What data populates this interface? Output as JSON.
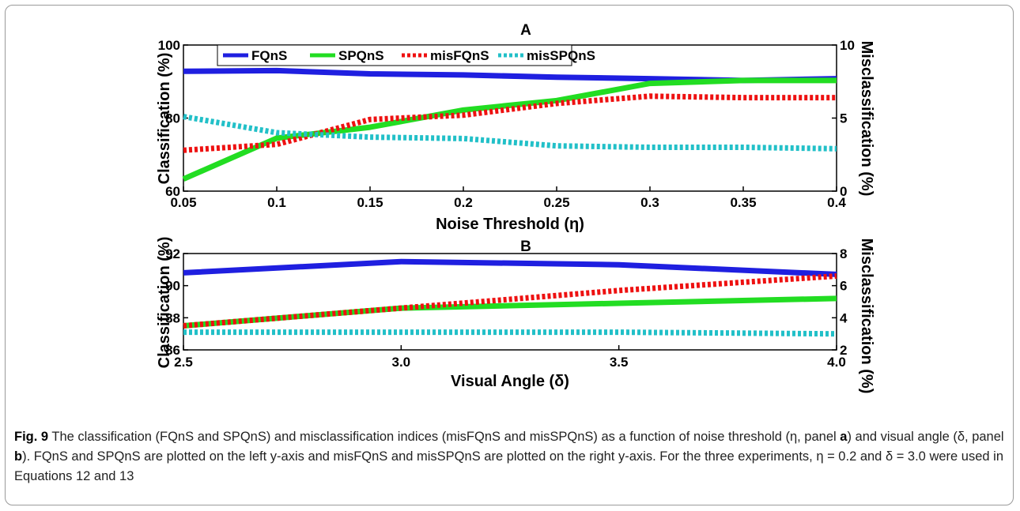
{
  "chart_data": [
    {
      "type": "line",
      "title": "A",
      "xlabel": "Noise Threshold (η)",
      "ylabel": "Classification (%)",
      "y2label": "Misclassification (%)",
      "x": [
        0.05,
        0.1,
        0.15,
        0.2,
        0.25,
        0.3,
        0.35,
        0.4
      ],
      "xticks": [
        "0.05",
        "0.1",
        "0.15",
        "0.2",
        "0.25",
        "0.3",
        "0.35",
        "0.4"
      ],
      "xlim": [
        0.05,
        0.4
      ],
      "ylim": [
        60,
        100
      ],
      "yticks": [
        "60",
        "80",
        "100"
      ],
      "y2lim": [
        0,
        10
      ],
      "y2ticks": [
        "0",
        "5",
        "10"
      ],
      "legend_position": "top",
      "series": [
        {
          "name": "FQnS",
          "axis": "left",
          "color": "#1f1fe0",
          "style": "solid",
          "values": [
            92.8,
            93.0,
            92.1,
            91.8,
            91.2,
            90.8,
            90.3,
            90.8
          ]
        },
        {
          "name": "SPQnS",
          "axis": "left",
          "color": "#22dd22",
          "style": "solid",
          "values": [
            63.3,
            74.5,
            77.5,
            82.2,
            84.8,
            89.5,
            90.3,
            90.3
          ]
        },
        {
          "name": "misFQnS",
          "axis": "right",
          "color": "#ee1111",
          "style": "dotted",
          "values": [
            2.8,
            3.2,
            4.9,
            5.2,
            6.0,
            6.5,
            6.4,
            6.4
          ]
        },
        {
          "name": "misSPQnS",
          "axis": "right",
          "color": "#22c0c8",
          "style": "dotted",
          "values": [
            5.1,
            4.0,
            3.7,
            3.6,
            3.1,
            3.0,
            3.0,
            2.9
          ]
        }
      ]
    },
    {
      "type": "line",
      "title": "B",
      "xlabel": "Visual Angle (δ)",
      "ylabel": "Classification (%)",
      "y2label": "Misclassification (%)",
      "x": [
        2.5,
        3.0,
        3.5,
        4.0
      ],
      "xticks": [
        "2.5",
        "3.0",
        "3.5",
        "4.0"
      ],
      "xlim": [
        2.5,
        4.0
      ],
      "ylim": [
        86,
        92
      ],
      "yticks": [
        "86",
        "88",
        "90",
        "92"
      ],
      "y2lim": [
        2,
        8
      ],
      "y2ticks": [
        "2",
        "4",
        "6",
        "8"
      ],
      "series": [
        {
          "name": "FQnS",
          "axis": "left",
          "color": "#1f1fe0",
          "style": "solid",
          "values": [
            90.8,
            91.5,
            91.3,
            90.7
          ]
        },
        {
          "name": "SPQnS",
          "axis": "left",
          "color": "#22dd22",
          "style": "solid",
          "values": [
            87.5,
            88.6,
            88.9,
            89.2
          ]
        },
        {
          "name": "misFQnS",
          "axis": "right",
          "color": "#ee1111",
          "style": "dotted",
          "values": [
            3.5,
            4.6,
            5.7,
            6.6
          ]
        },
        {
          "name": "misSPQnS",
          "axis": "right",
          "color": "#22c0c8",
          "style": "dotted",
          "values": [
            3.1,
            3.1,
            3.1,
            3.0
          ]
        }
      ]
    }
  ],
  "caption": {
    "fig_label": "Fig. 9",
    "t1": " The classification (FQnS and SPQnS) and misclassification indices (misFQnS and misSPQnS) as a function of noise threshold (η, panel ",
    "a": "a",
    "t2": ") and visual angle (δ, panel ",
    "b": "b",
    "t3": "). FQnS and SPQnS are plotted on the left y-axis and misFQnS and misSPQnS are plotted on the right y-axis. For the three experiments, η = 0.2 and δ = 3.0 were used in Equations 12 and 13"
  }
}
